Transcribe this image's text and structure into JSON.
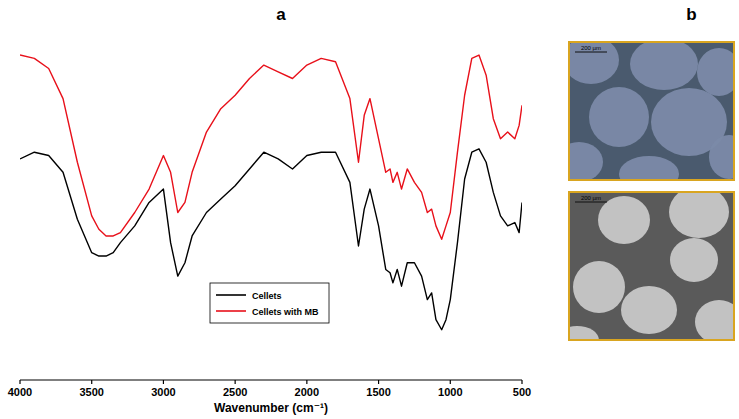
{
  "chart_data": {
    "type": "line",
    "panel": "a",
    "xlabel": "Wavenumber (cm⁻¹)",
    "x": [
      4000,
      3900,
      3800,
      3700,
      3600,
      3500,
      3450,
      3400,
      3350,
      3300,
      3200,
      3100,
      3000,
      2950,
      2900,
      2850,
      2800,
      2700,
      2600,
      2500,
      2400,
      2300,
      2200,
      2100,
      2000,
      1900,
      1800,
      1700,
      1640,
      1600,
      1560,
      1500,
      1450,
      1420,
      1400,
      1370,
      1340,
      1300,
      1250,
      1200,
      1160,
      1130,
      1100,
      1060,
      1030,
      1000,
      950,
      900,
      850,
      800,
      750,
      700,
      650,
      600,
      550,
      520,
      500
    ],
    "series": [
      {
        "name": "Cellets",
        "color": "#000000",
        "values": [
          66,
          68,
          67,
          62,
          48,
          38,
          37,
          37,
          38,
          41,
          46,
          53,
          57,
          41,
          31,
          35,
          43,
          50,
          54,
          58,
          63,
          68,
          66,
          63,
          67,
          68,
          68,
          59,
          40,
          51,
          57,
          46,
          33,
          32,
          29,
          33,
          28,
          35,
          35,
          31,
          24,
          26,
          18,
          15,
          18,
          24,
          41,
          60,
          68,
          69,
          65,
          56,
          49,
          46,
          47,
          44,
          53
        ]
      },
      {
        "name": "Cellets with MB",
        "color": "#e8101a",
        "values": [
          97,
          96,
          93,
          84,
          65,
          49,
          45,
          43,
          43,
          44,
          50,
          57,
          67,
          62,
          50,
          53,
          62,
          74,
          81,
          85,
          90,
          94,
          92,
          90,
          94,
          96,
          95,
          84,
          65,
          79,
          84,
          72,
          62,
          63,
          59,
          62,
          57,
          63,
          59,
          56,
          50,
          51,
          46,
          42,
          46,
          50,
          68,
          85,
          96,
          97,
          91,
          78,
          72,
          74,
          72,
          76,
          82
        ]
      }
    ],
    "xlim": [
      4000,
      500
    ],
    "xticks": [
      4000,
      3500,
      3000,
      2500,
      2000,
      1500,
      1000,
      500
    ],
    "ylim": [
      0,
      100
    ],
    "tick_labels": "x",
    "grid": false,
    "legend": "lower center"
  },
  "images": {
    "panel": "b",
    "items": [
      {
        "scale_bar": "200 µm"
      },
      {
        "scale_bar": "200 µm"
      }
    ]
  }
}
